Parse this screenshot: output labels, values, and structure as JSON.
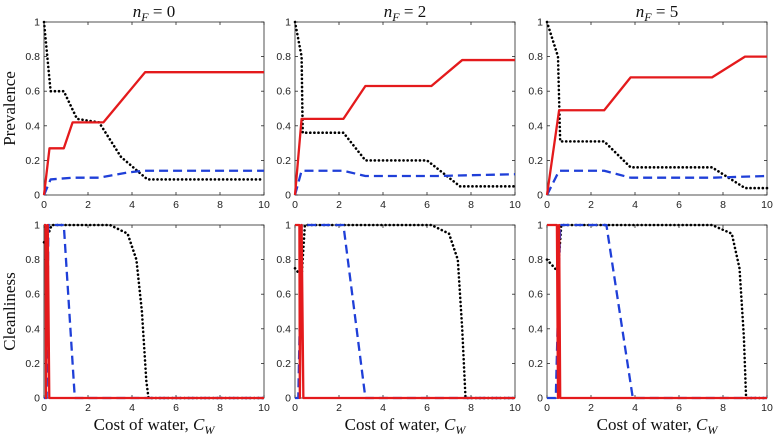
{
  "chart_data": {
    "type": "line",
    "layout": "2x3 grid",
    "row_labels": [
      "Prevalence",
      "Cleanliness"
    ],
    "column_titles": [
      {
        "base": "n",
        "sub": "F",
        "rest": " = 0"
      },
      {
        "base": "n",
        "sub": "F",
        "rest": " = 2"
      },
      {
        "base": "n",
        "sub": "F",
        "rest": " = 5"
      }
    ],
    "xlabel": {
      "text": "Cost of water, ",
      "base": "C",
      "sub": "W"
    },
    "xlim": [
      0,
      10
    ],
    "ylim": [
      0,
      1
    ],
    "xticks": [
      "0",
      "2",
      "4",
      "6",
      "8",
      "10"
    ],
    "yticks": [
      "0",
      "0.2",
      "0.4",
      "0.6",
      "0.8",
      "1"
    ],
    "cleanliness_yticks": [
      "0",
      "0.2",
      "0.4",
      "0.6",
      "0.8",
      "1"
    ],
    "series_styles": [
      {
        "name": "red-solid",
        "color": "#e41a1c",
        "dash": "solid"
      },
      {
        "name": "blue-dashed",
        "color": "#1f3fd8",
        "dash": "dashed"
      },
      {
        "name": "black-dotted",
        "color": "#000000",
        "dash": "dotted"
      }
    ],
    "panels": [
      {
        "row": 0,
        "col": 0,
        "series": [
          {
            "name": "red-solid",
            "x": [
              0,
              0.25,
              0.9,
              1.3,
              2.7,
              4.6,
              10
            ],
            "y": [
              0,
              0.27,
              0.27,
              0.42,
              0.42,
              0.71,
              0.71
            ]
          },
          {
            "name": "blue-dashed",
            "x": [
              0,
              0.3,
              1.3,
              2.5,
              3.8,
              4.5,
              10
            ],
            "y": [
              0,
              0.09,
              0.1,
              0.1,
              0.13,
              0.14,
              0.14
            ]
          },
          {
            "name": "black-dotted",
            "x": [
              0,
              0.3,
              0.9,
              1.5,
              2.5,
              3.5,
              4.7,
              10
            ],
            "y": [
              1.0,
              0.6,
              0.6,
              0.44,
              0.42,
              0.22,
              0.09,
              0.09
            ]
          }
        ]
      },
      {
        "row": 0,
        "col": 1,
        "series": [
          {
            "name": "red-solid",
            "x": [
              0,
              0.3,
              2.2,
              3.2,
              6.2,
              7.6,
              10
            ],
            "y": [
              0,
              0.44,
              0.44,
              0.63,
              0.63,
              0.78,
              0.78
            ]
          },
          {
            "name": "blue-dashed",
            "x": [
              0,
              0.3,
              2.2,
              3.2,
              6.5,
              10
            ],
            "y": [
              0,
              0.14,
              0.14,
              0.11,
              0.11,
              0.12
            ]
          },
          {
            "name": "black-dotted",
            "x": [
              0,
              0.3,
              0.35,
              2.2,
              3.2,
              6.0,
              7.5,
              10
            ],
            "y": [
              1.0,
              0.8,
              0.36,
              0.36,
              0.2,
              0.2,
              0.05,
              0.05
            ]
          }
        ]
      },
      {
        "row": 0,
        "col": 2,
        "series": [
          {
            "name": "red-solid",
            "x": [
              0,
              0.55,
              2.6,
              3.8,
              7.5,
              9.0,
              10
            ],
            "y": [
              0,
              0.49,
              0.49,
              0.68,
              0.68,
              0.8,
              0.8
            ]
          },
          {
            "name": "blue-dashed",
            "x": [
              0,
              0.55,
              2.6,
              3.8,
              7.5,
              10
            ],
            "y": [
              0,
              0.14,
              0.14,
              0.1,
              0.1,
              0.11
            ]
          },
          {
            "name": "black-dotted",
            "x": [
              0,
              0.5,
              0.6,
              2.6,
              3.8,
              7.5,
              9.0,
              10
            ],
            "y": [
              1.0,
              0.8,
              0.31,
              0.31,
              0.16,
              0.16,
              0.04,
              0.04
            ]
          }
        ]
      },
      {
        "row": 1,
        "col": 0,
        "series": [
          {
            "name": "red-solid",
            "x": [
              0,
              0.07,
              0.09,
              0.17,
              0.24,
              10
            ],
            "y": [
              1,
              1,
              0.0,
              1.0,
              0,
              0
            ]
          },
          {
            "name": "blue-dashed",
            "x": [
              0,
              0.12,
              0.2,
              0.9,
              1.4,
              10
            ],
            "y": [
              0,
              0,
              1,
              1,
              0,
              0
            ]
          },
          {
            "name": "black-dotted",
            "x": [
              0,
              0.2,
              0.35,
              3.0,
              3.8,
              4.2,
              4.45,
              4.65,
              4.75,
              10
            ],
            "y": [
              0.9,
              0.95,
              1,
              1,
              0.95,
              0.8,
              0.5,
              0.1,
              0,
              0
            ]
          }
        ]
      },
      {
        "row": 1,
        "col": 1,
        "series": [
          {
            "name": "red-solid",
            "x": [
              0,
              0.2,
              0.22,
              0.3,
              0.38,
              10
            ],
            "y": [
              1,
              1,
              0.0,
              1.0,
              0,
              0
            ]
          },
          {
            "name": "blue-dashed",
            "x": [
              0,
              0.15,
              0.3,
              2.2,
              3.2,
              10
            ],
            "y": [
              0,
              0,
              1,
              1,
              0,
              0
            ]
          },
          {
            "name": "black-dotted",
            "x": [
              0,
              0.3,
              0.45,
              6.2,
              7.0,
              7.4,
              7.6,
              7.75,
              10
            ],
            "y": [
              0.75,
              0.7,
              1,
              1,
              0.95,
              0.8,
              0.4,
              0,
              0
            ]
          }
        ]
      },
      {
        "row": 1,
        "col": 2,
        "series": [
          {
            "name": "red-solid",
            "x": [
              0,
              0.45,
              0.5,
              0.55,
              0.6,
              10
            ],
            "y": [
              1,
              1,
              0.0,
              1.0,
              0,
              0
            ]
          },
          {
            "name": "blue-dashed",
            "x": [
              0,
              0.4,
              0.6,
              2.7,
              3.9,
              10
            ],
            "y": [
              0,
              0,
              1,
              1,
              0,
              0
            ]
          },
          {
            "name": "black-dotted",
            "x": [
              0,
              0.5,
              0.65,
              7.5,
              8.4,
              8.75,
              8.95,
              9.05,
              10
            ],
            "y": [
              0.8,
              0.73,
              1,
              1,
              0.95,
              0.75,
              0.35,
              0,
              0
            ]
          }
        ]
      }
    ]
  }
}
